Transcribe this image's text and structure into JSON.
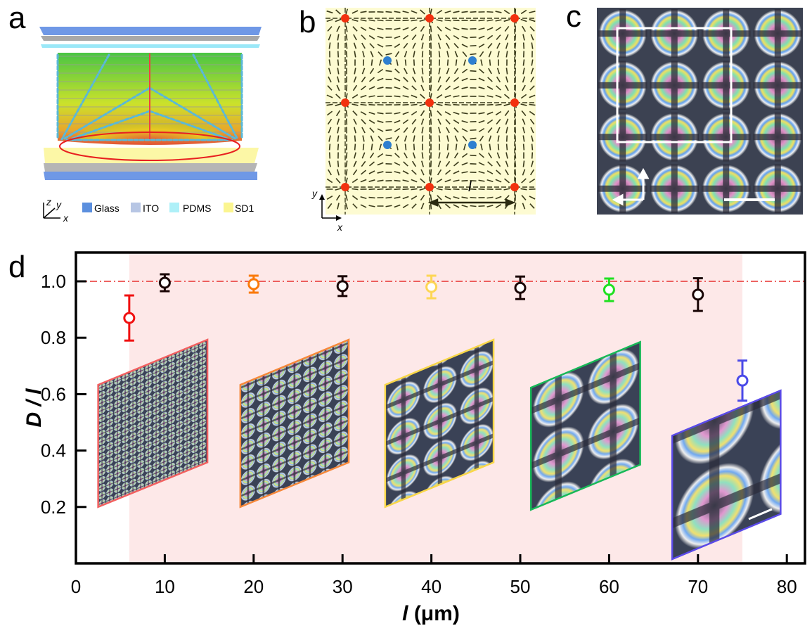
{
  "panels": {
    "a": {
      "letter": "a",
      "axes": {
        "z": "z",
        "y": "y",
        "x": "x"
      },
      "legend": [
        {
          "label": "Glass",
          "color": "#5b8fde"
        },
        {
          "label": "ITO",
          "color": "#b7c6e4"
        },
        {
          "label": "PDMS",
          "color": "#aef0f8"
        },
        {
          "label": "SD1",
          "color": "#fbf590"
        }
      ]
    },
    "b": {
      "letter": "b",
      "axes": {
        "y": "y",
        "x": "x"
      },
      "period_label": "l",
      "colors": {
        "background": "#fdfbd2",
        "plus_defect": "#f2310f",
        "minus_defect": "#2e7fd0",
        "director": "#3a3a1a"
      }
    },
    "c": {
      "letter": "c"
    },
    "d": {
      "letter": "d"
    }
  },
  "chart_data": {
    "type": "scatter",
    "title": "",
    "xlabel_italic": "l",
    "xlabel_unit": " (μm)",
    "ylabel": "D / l",
    "xlim": [
      0,
      82
    ],
    "ylim": [
      0,
      1.1
    ],
    "xticks": [
      0,
      10,
      20,
      30,
      40,
      50,
      60,
      70,
      80
    ],
    "xtick_labels": [
      "0",
      "10",
      "20",
      "30",
      "40",
      "50",
      "60",
      "70",
      "80"
    ],
    "yticks": [
      0.2,
      0.4,
      0.6,
      0.8,
      1.0
    ],
    "ytick_labels": [
      "0.2",
      "0.4",
      "0.6",
      "0.8",
      "1.0"
    ],
    "grid": false,
    "reference_line": {
      "y": 1.0,
      "style": "dash-dot",
      "color": "#e8312f"
    },
    "shaded_region": {
      "x": [
        6,
        75
      ],
      "color": "#fde8e8"
    },
    "points": [
      {
        "x": 6,
        "y": 0.87,
        "err": 0.08,
        "color": "#f01010"
      },
      {
        "x": 10,
        "y": 0.995,
        "err": 0.03,
        "color": "#1a0505"
      },
      {
        "x": 20,
        "y": 0.99,
        "err": 0.03,
        "color": "#fa7a0a"
      },
      {
        "x": 30,
        "y": 0.983,
        "err": 0.035,
        "color": "#1a0505"
      },
      {
        "x": 40,
        "y": 0.98,
        "err": 0.04,
        "color": "#fdd654"
      },
      {
        "x": 50,
        "y": 0.977,
        "err": 0.04,
        "color": "#1a0505"
      },
      {
        "x": 60,
        "y": 0.97,
        "err": 0.04,
        "color": "#20e020"
      },
      {
        "x": 70,
        "y": 0.953,
        "err": 0.058,
        "color": "#1a0505"
      },
      {
        "x": 75,
        "y": 0.648,
        "err": 0.071,
        "color": "#4a4ae8"
      }
    ],
    "insets": [
      {
        "x_left": 2.5,
        "x_right": 14.8,
        "y_bottom_left": 0.2,
        "y_top_left": 0.633,
        "y_bottom_right": 0.358,
        "y_top_right": 0.793,
        "border": "#f26060",
        "pattern": "fine"
      },
      {
        "x_left": 18.5,
        "x_right": 30.7,
        "y_bottom_left": 0.2,
        "y_top_left": 0.633,
        "y_bottom_right": 0.358,
        "y_top_right": 0.793,
        "border": "#f6883a",
        "pattern": "small"
      },
      {
        "x_left": 34.8,
        "x_right": 47.0,
        "y_bottom_left": 0.2,
        "y_top_left": 0.633,
        "y_bottom_right": 0.358,
        "y_top_right": 0.793,
        "border": "#f8d648",
        "pattern": "medium"
      },
      {
        "x_left": 51.2,
        "x_right": 63.5,
        "y_bottom_left": 0.19,
        "y_top_left": 0.623,
        "y_bottom_right": 0.35,
        "y_top_right": 0.785,
        "border": "#18b858",
        "pattern": "large"
      },
      {
        "x_left": 67.1,
        "x_right": 79.3,
        "y_bottom_left": 0.015,
        "y_top_left": 0.453,
        "y_bottom_right": 0.175,
        "y_top_right": 0.613,
        "border": "#5a4ae8",
        "pattern": "xlarge"
      }
    ]
  }
}
